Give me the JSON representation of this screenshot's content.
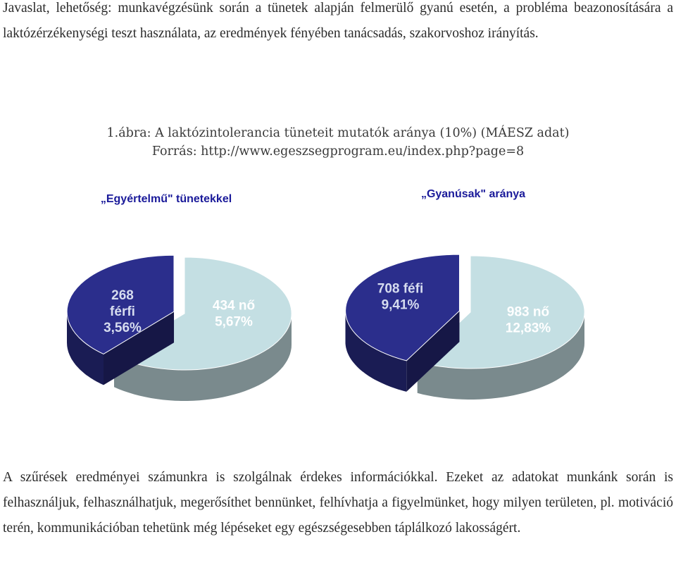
{
  "intro_paragraph": "Javaslat, lehetőség: munkavégzésünk során a tünetek alapján felmerülő gyanú esetén, a probléma beazonosítására a laktózérzékenységi teszt használata, az eredmények fényében tanácsadás, szakorvoshoz irányítás.",
  "figure_caption": {
    "line1": "1.ábra: A laktózintolerancia tüneteit mutatók aránya (10%) (MÁESZ adat)",
    "line2": "Forrás: http://www.egeszsegprogram.eu/index.php?page=8"
  },
  "colors": {
    "men": "#2b2e8c",
    "women": "#c4dfe3",
    "title": "#1a1a9a"
  },
  "chart_data": [
    {
      "type": "pie",
      "title": "„Egyértelmű\" tünetekkel",
      "slices": [
        {
          "label_lines": [
            "268",
            "férfi",
            "3,56%"
          ],
          "value": 3.56
        },
        {
          "label_lines": [
            "434 nő",
            "5,67%"
          ],
          "value": 5.67
        }
      ]
    },
    {
      "type": "pie",
      "title": "„Gyanúsak\" aránya",
      "slices": [
        {
          "label_lines": [
            "708 féfi",
            "9,41%"
          ],
          "value": 9.41
        },
        {
          "label_lines": [
            "983 nő",
            "12,83%"
          ],
          "value": 12.83
        }
      ]
    }
  ],
  "closing_paragraph": "A szűrések eredményei számunkra is szolgálnak érdekes információkkal. Ezeket az adatokat munkánk során is felhasználjuk, felhasználhatjuk, megerősíthet bennünket, felhívhatja a figyelmünket, hogy milyen területen, pl. motiváció terén, kommunikációban tehetünk még lépéseket egy egészségesebben táplálkozó lakosságért."
}
